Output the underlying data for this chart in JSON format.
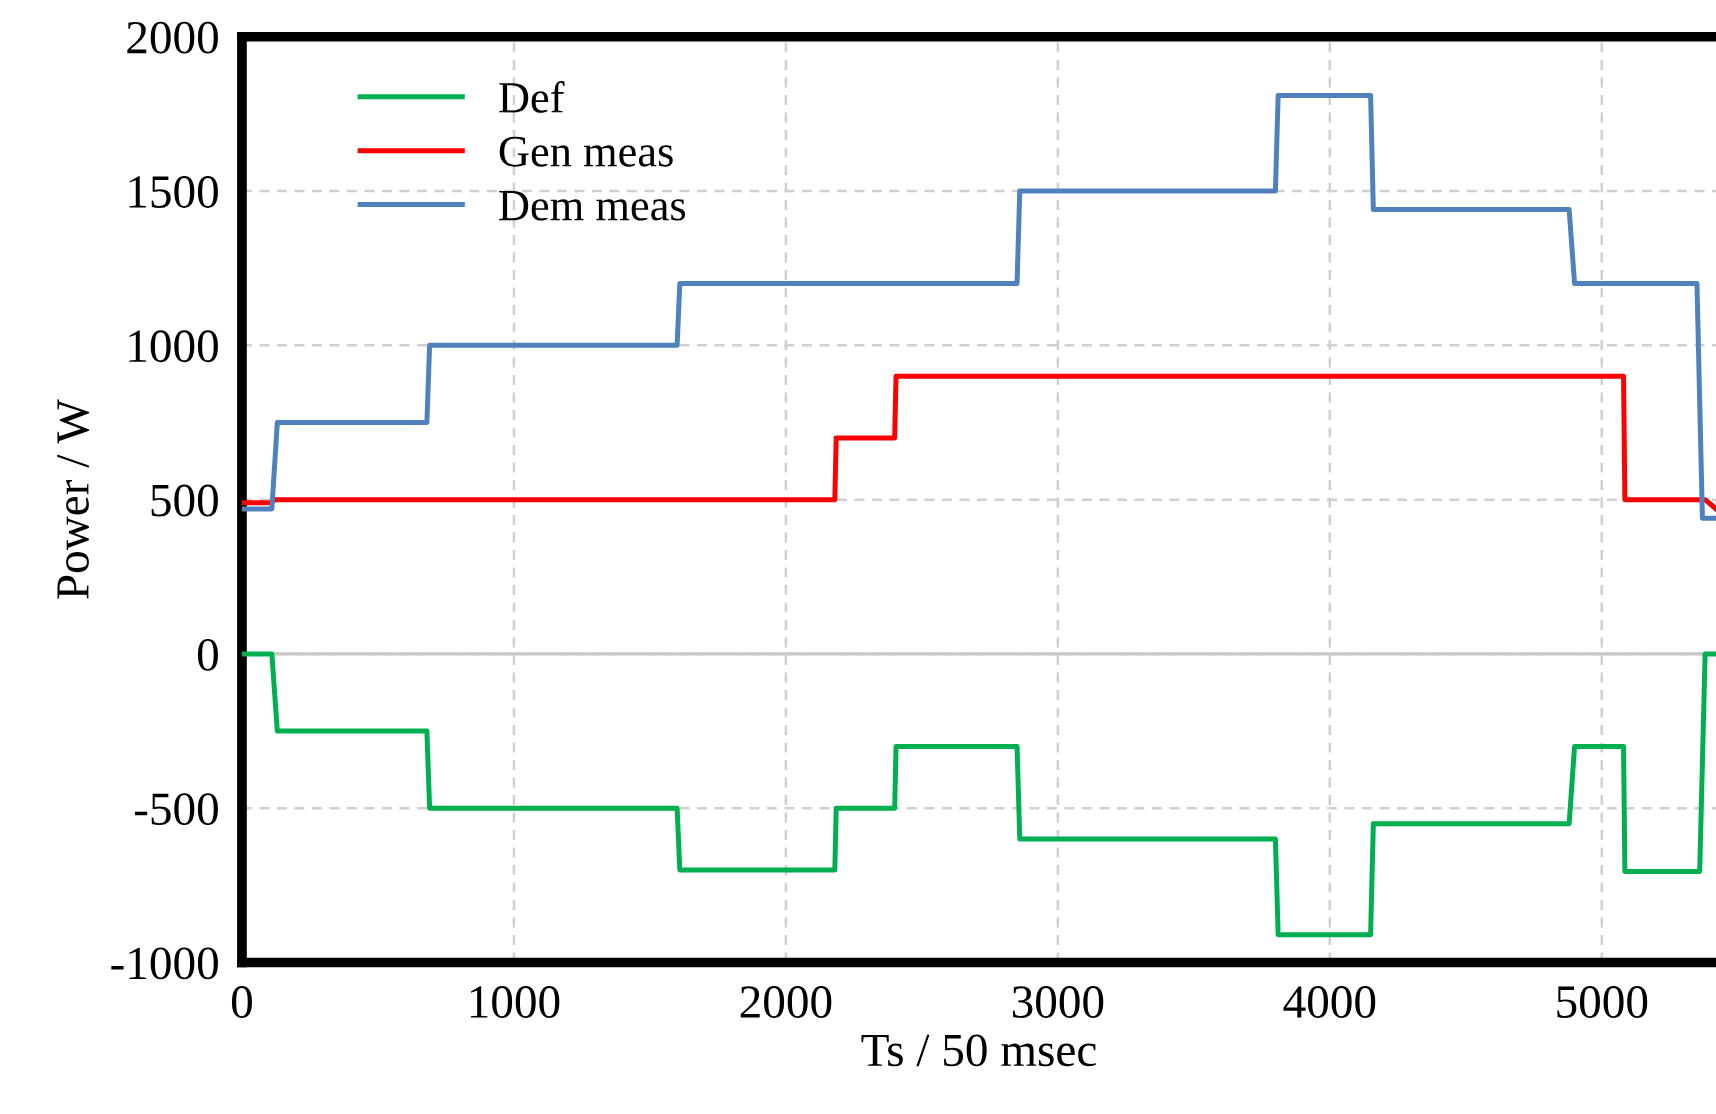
{
  "chart_data": {
    "type": "line",
    "xlabel": "Ts / 50 msec",
    "ylabel": "Power / W",
    "xlim": [
      0,
      5420
    ],
    "ylim": [
      -1000,
      2000
    ],
    "xticks": [
      0,
      1000,
      2000,
      3000,
      4000,
      5000
    ],
    "yticks": [
      -1000,
      -500,
      0,
      500,
      1000,
      1500,
      2000
    ],
    "grid": true,
    "legend": "top left",
    "line_style": "solid",
    "marker": "none",
    "ref_lines": [
      {
        "axis": "y",
        "value": 0,
        "color": "#c8c8c8"
      }
    ],
    "series": [
      {
        "name": "Def",
        "color": "#00b050",
        "x": [
          0,
          110,
          130,
          680,
          690,
          1600,
          1610,
          2180,
          2185,
          2400,
          2405,
          2850,
          2860,
          3800,
          3810,
          4150,
          4160,
          4880,
          4900,
          5080,
          5085,
          5360,
          5380,
          5420
        ],
        "values": [
          0,
          0,
          -250,
          -250,
          -500,
          -500,
          -700,
          -700,
          -500,
          -500,
          -300,
          -300,
          -600,
          -600,
          -910,
          -910,
          -550,
          -550,
          -300,
          -300,
          -705,
          -705,
          0,
          0
        ]
      },
      {
        "name": "Gen meas",
        "color": "#ff0000",
        "x": [
          0,
          110,
          120,
          2180,
          2185,
          2400,
          2405,
          5080,
          5085,
          5380,
          5420
        ],
        "values": [
          490,
          490,
          500,
          500,
          700,
          700,
          900,
          900,
          500,
          500,
          470
        ]
      },
      {
        "name": "Dem meas",
        "color": "#4f81bd",
        "x": [
          0,
          110,
          130,
          680,
          690,
          1600,
          1610,
          2850,
          2860,
          3800,
          3810,
          4150,
          4160,
          4880,
          4900,
          5350,
          5370,
          5420
        ],
        "values": [
          470,
          470,
          750,
          750,
          1000,
          1000,
          1200,
          1200,
          1500,
          1500,
          1810,
          1810,
          1440,
          1440,
          1200,
          1200,
          440,
          440
        ]
      }
    ]
  }
}
